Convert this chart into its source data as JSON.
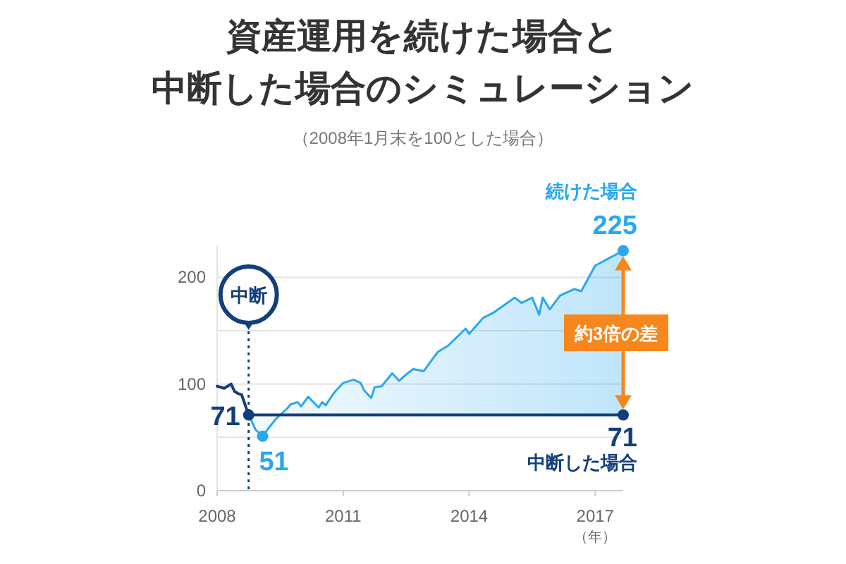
{
  "chart_data": {
    "type": "line",
    "title": "資産運用を続けた場合と中断した場合のシミュレーション",
    "subtitle": "（2008年1月末を100とした場合）",
    "xlabel": "（年）",
    "xlim": [
      "2008-01",
      "2017-09"
    ],
    "xticks": [
      "2008",
      "2011",
      "2014",
      "2017"
    ],
    "ylim": [
      0,
      230
    ],
    "yticks": [
      0,
      {
        "value": 50,
        "label": null
      },
      100,
      {
        "value": 150,
        "label": null
      },
      200
    ],
    "grid": "y",
    "marker": "none",
    "line_style": "solid",
    "series": [
      {
        "name": "続けた場合",
        "type": "area",
        "color": "#29a8f0",
        "x": [
          "2008-10",
          "2008-12",
          "2009-02",
          "2009-04",
          "2009-06",
          "2009-09",
          "2009-10",
          "2009-12",
          "2010-01",
          "2010-03",
          "2010-06",
          "2010-07",
          "2010-08",
          "2010-10",
          "2010-11",
          "2011-01",
          "2011-04",
          "2011-06",
          "2011-07",
          "2011-09",
          "2011-10",
          "2011-12",
          "2012-03",
          "2012-05",
          "2012-07",
          "2012-09",
          "2012-12",
          "2013-02",
          "2013-04",
          "2013-07",
          "2013-12",
          "2014-01",
          "2014-05",
          "2014-08",
          "2014-11",
          "2015-02",
          "2015-04",
          "2015-07",
          "2015-09",
          "2015-10",
          "2015-12",
          "2016-03",
          "2016-07",
          "2016-09",
          "2017-01",
          "2017-05",
          "2017-09"
        ],
        "values": [
          71,
          57,
          51,
          60,
          68,
          77,
          81,
          83,
          79,
          88,
          78,
          83,
          80,
          90,
          94,
          101,
          104,
          101,
          94,
          87,
          97,
          98,
          110,
          103,
          109,
          114,
          112,
          121,
          130,
          136,
          152,
          147,
          162,
          167,
          174,
          181,
          176,
          181,
          165,
          181,
          170,
          183,
          189,
          187,
          211,
          218,
          225
        ]
      },
      {
        "name": "中断した場合",
        "color": "#123f7c",
        "x": [
          "2008-01",
          "2008-03",
          "2008-05",
          "2008-06",
          "2008-07",
          "2008-08",
          "2008-10",
          "2017-09"
        ],
        "values": [
          98,
          96,
          100,
          93,
          91,
          90,
          71,
          71
        ]
      }
    ],
    "ref_lines": [
      {
        "axis": "x",
        "value": "2008-10",
        "label": "中断",
        "color": "#123f7c",
        "line_style": "dotted"
      }
    ],
    "annotations": [
      {
        "text": "71",
        "x": "2008-10",
        "y": 71
      },
      {
        "text": "51",
        "x": "2009-02",
        "y": 51
      },
      {
        "text": "225",
        "x": "2017-09",
        "y": 225
      },
      {
        "text": "71",
        "x": "2017-09",
        "y": 71
      },
      "約3倍の差"
    ]
  }
}
